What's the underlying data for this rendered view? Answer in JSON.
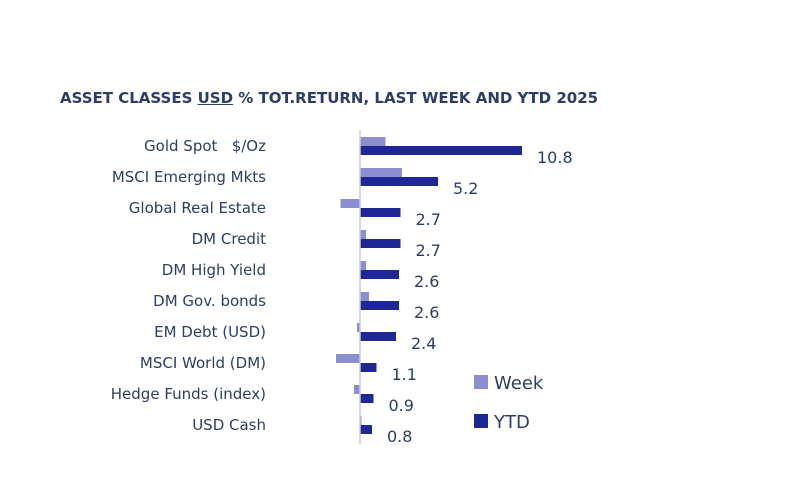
{
  "chart_data": {
    "type": "bar",
    "orientation": "horizontal",
    "title_parts": [
      "ASSET CLASSES ",
      "USD",
      " % TOT.RETURN, LAST WEEK AND YTD 2025"
    ],
    "categories": [
      "Gold Spot   $/Oz",
      "MSCI Emerging Mkts",
      "Global Real Estate",
      "DM Credit",
      "DM High Yield",
      "DM Gov. bonds",
      "EM Debt (USD)",
      "MSCI World (DM)",
      "Hedge Funds (index)",
      "USD Cash"
    ],
    "series": [
      {
        "name": "Week",
        "color": "#8b8fcf",
        "values": [
          1.7,
          2.8,
          -1.3,
          0.4,
          0.4,
          0.6,
          -0.2,
          -1.6,
          -0.4,
          0.1
        ]
      },
      {
        "name": "YTD",
        "color": "#1f2796",
        "values": [
          10.8,
          5.2,
          2.7,
          2.7,
          2.6,
          2.6,
          2.4,
          1.1,
          0.9,
          0.8
        ]
      }
    ],
    "value_labels": [
      "10.8",
      "5.2",
      "2.7",
      "2.7",
      "2.6",
      "2.6",
      "2.4",
      "1.1",
      "0.9",
      "0.8"
    ],
    "legend_position": "bottom-right",
    "grid": false
  }
}
